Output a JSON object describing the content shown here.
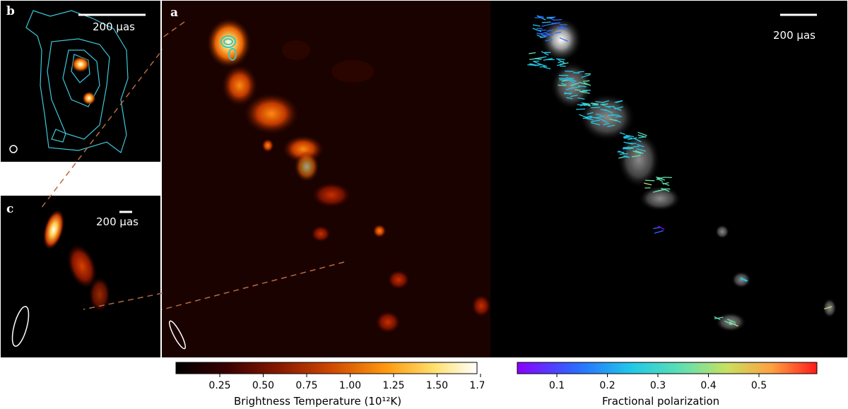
{
  "panels": {
    "a": {
      "label": "a"
    },
    "b": {
      "label": "b",
      "scale_text": "200 μas"
    },
    "c": {
      "label": "c",
      "scale_text": "200 μas"
    },
    "pol": {
      "scale_text": "200 μas"
    }
  },
  "colorbars": {
    "brightness": {
      "title": "Brightness Temperature (10¹²K)",
      "ticks": [
        "0.25",
        "0.50",
        "0.75",
        "1.00",
        "1.25",
        "1.50",
        "1.75"
      ],
      "colors": [
        "#000000",
        "#3a0000",
        "#8a1a00",
        "#d04a00",
        "#ff9a10",
        "#ffe070",
        "#ffffff"
      ]
    },
    "polarization": {
      "title": "Fractional polarization",
      "ticks": [
        "0.1",
        "0.2",
        "0.3",
        "0.4",
        "0.5"
      ],
      "colors": [
        "#8a00ff",
        "#2a6cff",
        "#20c8e8",
        "#60e0b0",
        "#c8e060",
        "#ffa040",
        "#ff1a1a"
      ]
    }
  },
  "colors": {
    "contour": "#3cc8d8",
    "connector": "#b86a40",
    "beam": "#ffffff"
  }
}
